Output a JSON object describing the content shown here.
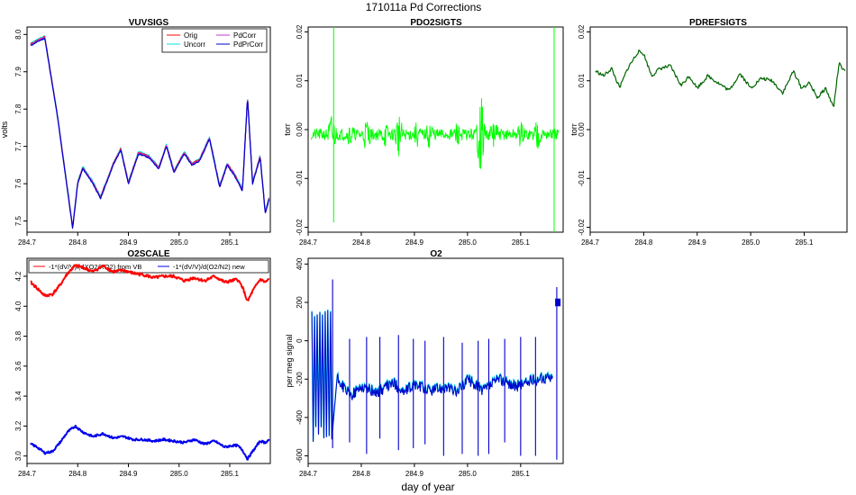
{
  "figure": {
    "title": "171011a   Pd Corrections",
    "xlabel": "day of year"
  },
  "colors": {
    "orig": "#ff0000",
    "uncorr": "#00e5ee",
    "pdcorr": "#cc33cc",
    "pdprcorr": "#0000cc",
    "pdo2": "#00ff00",
    "pdref": "#006400",
    "o2scale_vb": "#ff0000",
    "o2scale_new": "#0000ee"
  },
  "chart_data": [
    {
      "id": "vuvsigs",
      "type": "line",
      "title": "VUVSIGS",
      "ylabel": "volts",
      "xlim": [
        284.7,
        285.18
      ],
      "ylim": [
        7.47,
        8.02
      ],
      "xticks": [
        "284.7",
        "284.8",
        "284.9",
        "285.0",
        "285.1"
      ],
      "yticks": [
        "7.5",
        "7.6",
        "7.7",
        "7.8",
        "7.9",
        "8.0"
      ],
      "legend": {
        "position": "top-right",
        "entries": [
          "Orig",
          "Uncorr",
          "PdCorr",
          "PdPrCorr"
        ]
      },
      "x": [
        284.707,
        284.72,
        284.735,
        284.76,
        284.79,
        284.8,
        284.81,
        284.83,
        284.845,
        284.87,
        284.885,
        284.9,
        284.92,
        284.94,
        284.96,
        284.975,
        284.99,
        285.01,
        285.025,
        285.04,
        285.06,
        285.08,
        285.095,
        285.11,
        285.125,
        285.135,
        285.145,
        285.16,
        285.17,
        285.178
      ],
      "series": [
        {
          "name": "PdPrCorr",
          "values": [
            7.97,
            7.98,
            7.99,
            7.78,
            7.48,
            7.6,
            7.64,
            7.6,
            7.56,
            7.65,
            7.69,
            7.6,
            7.68,
            7.67,
            7.64,
            7.7,
            7.63,
            7.68,
            7.65,
            7.66,
            7.72,
            7.59,
            7.65,
            7.62,
            7.58,
            7.83,
            7.6,
            7.67,
            7.52,
            7.56
          ]
        }
      ]
    },
    {
      "id": "pdo2sigts",
      "type": "line",
      "title": "PDO2SIGTS",
      "ylabel": "torr",
      "xlim": [
        284.7,
        285.18
      ],
      "ylim": [
        -0.021,
        0.021
      ],
      "xticks": [
        "284.7",
        "284.8",
        "284.9",
        "285.0",
        "285.1"
      ],
      "yticks": [
        "-0.02",
        "-0.01",
        "0.00",
        "0.01",
        "0.02"
      ],
      "baseline": -0.001,
      "bursts": [
        {
          "x": 284.745,
          "amp": 0.005
        },
        {
          "x": 284.78,
          "amp": 0.003
        },
        {
          "x": 284.81,
          "amp": 0.004
        },
        {
          "x": 284.845,
          "amp": 0.003
        },
        {
          "x": 284.87,
          "amp": 0.005
        },
        {
          "x": 284.905,
          "amp": 0.003
        },
        {
          "x": 284.93,
          "amp": 0.004
        },
        {
          "x": 284.98,
          "amp": 0.003
        },
        {
          "x": 285.025,
          "amp": 0.009
        },
        {
          "x": 285.05,
          "amp": 0.004
        },
        {
          "x": 285.1,
          "amp": 0.003
        },
        {
          "x": 285.13,
          "amp": 0.004
        }
      ],
      "spikes": [
        {
          "x": 284.748,
          "min": -0.019,
          "max": 0.021
        },
        {
          "x": 285.163,
          "min": -0.021,
          "max": 0.021
        }
      ]
    },
    {
      "id": "pdrefsigts",
      "type": "line",
      "title": "PDREFSIGTS",
      "ylabel": "torr",
      "xlim": [
        284.7,
        285.18
      ],
      "ylim": [
        -0.021,
        0.021
      ],
      "xticks": [
        "284.7",
        "284.8",
        "284.9",
        "285.0",
        "285.1"
      ],
      "yticks": [
        "-0.02",
        "-0.01",
        "0.00",
        "0.01",
        "0.02"
      ],
      "x": [
        284.71,
        284.725,
        284.74,
        284.755,
        284.77,
        284.79,
        284.8,
        284.815,
        284.83,
        284.85,
        284.87,
        284.885,
        284.9,
        284.92,
        284.94,
        284.96,
        284.98,
        285.0,
        285.02,
        285.04,
        285.06,
        285.08,
        285.095,
        285.11,
        285.125,
        285.14,
        285.155,
        285.165,
        285.178
      ],
      "values": [
        0.012,
        0.011,
        0.0125,
        0.0085,
        0.0125,
        0.016,
        0.0155,
        0.011,
        0.0125,
        0.013,
        0.009,
        0.011,
        0.0085,
        0.011,
        0.0095,
        0.008,
        0.0115,
        0.0085,
        0.0105,
        0.01,
        0.0075,
        0.012,
        0.0085,
        0.0095,
        0.0065,
        0.0085,
        0.0045,
        0.0135,
        0.0115
      ]
    },
    {
      "id": "o2scale",
      "type": "line",
      "title": "O2SCALE",
      "ylabel": "",
      "xlim": [
        284.7,
        285.18
      ],
      "ylim": [
        2.95,
        4.32
      ],
      "xticks": [
        "284.7",
        "284.8",
        "284.9",
        "285.0",
        "285.1"
      ],
      "yticks": [
        "3.0",
        "3.2",
        "3.4",
        "3.6",
        "3.8",
        "4.0",
        "4.2"
      ],
      "legend": {
        "position": "top",
        "entries": [
          "-1*(dV/V)/(dXO2/XO2) from VB",
          "-1*(dV/V)/d(O2/N2) new"
        ]
      },
      "x": [
        284.707,
        284.72,
        284.735,
        284.75,
        284.765,
        284.78,
        284.795,
        284.81,
        284.83,
        284.85,
        284.87,
        284.89,
        284.91,
        284.93,
        284.95,
        284.97,
        284.99,
        285.01,
        285.03,
        285.05,
        285.07,
        285.09,
        285.105,
        285.115,
        285.125,
        285.135,
        285.145,
        285.16,
        285.17,
        285.178
      ],
      "series": [
        {
          "name": "-1*(dV/V)/(dXO2/XO2) from VB",
          "values": [
            4.16,
            4.12,
            4.07,
            4.08,
            4.14,
            4.22,
            4.27,
            4.26,
            4.23,
            4.27,
            4.23,
            4.24,
            4.22,
            4.21,
            4.19,
            4.2,
            4.2,
            4.17,
            4.19,
            4.17,
            4.2,
            4.16,
            4.17,
            4.18,
            4.13,
            4.03,
            4.1,
            4.18,
            4.16,
            4.18
          ]
        },
        {
          "name": "-1*(dV/V)/d(O2/N2) new",
          "values": [
            3.08,
            3.06,
            3.02,
            3.03,
            3.09,
            3.16,
            3.2,
            3.16,
            3.13,
            3.15,
            3.12,
            3.13,
            3.11,
            3.11,
            3.1,
            3.11,
            3.1,
            3.09,
            3.11,
            3.08,
            3.1,
            3.06,
            3.07,
            3.07,
            3.04,
            2.98,
            3.03,
            3.1,
            3.09,
            3.11
          ]
        }
      ]
    },
    {
      "id": "o2",
      "type": "line",
      "title": "O2",
      "ylabel": "per meg signal",
      "xlim": [
        284.7,
        285.18
      ],
      "ylim": [
        -640,
        430
      ],
      "xticks": [
        "284.7",
        "284.8",
        "284.9",
        "285.0",
        "285.1"
      ],
      "yticks": [
        "-600",
        "-400",
        "-200",
        "0",
        "200",
        "400"
      ],
      "baseline_x": [
        284.755,
        284.78,
        284.8,
        284.83,
        284.86,
        284.88,
        284.9,
        284.93,
        284.96,
        284.98,
        285.0,
        285.03,
        285.06,
        285.09,
        285.12,
        285.15,
        285.16
      ],
      "baseline_y": [
        -200,
        -290,
        -240,
        -270,
        -220,
        -270,
        -230,
        -260,
        -240,
        -270,
        -200,
        -260,
        -200,
        -240,
        -210,
        -190,
        -200
      ],
      "early_oscillation": {
        "x_start": 284.707,
        "x_end": 284.745,
        "min": -570,
        "max": 180
      },
      "spikes": [
        {
          "x": 284.746,
          "min": -560,
          "max": 320
        },
        {
          "x": 284.778,
          "min": -530,
          "max": 10
        },
        {
          "x": 284.81,
          "min": -590,
          "max": 20
        },
        {
          "x": 284.835,
          "min": -510,
          "max": 20
        },
        {
          "x": 284.87,
          "min": -570,
          "max": 30
        },
        {
          "x": 284.898,
          "min": -560,
          "max": 10
        },
        {
          "x": 284.92,
          "min": -540,
          "max": 0
        },
        {
          "x": 284.955,
          "min": -600,
          "max": 20
        },
        {
          "x": 284.99,
          "min": -590,
          "max": -10
        },
        {
          "x": 285.02,
          "min": -600,
          "max": 0
        },
        {
          "x": 285.04,
          "min": -590,
          "max": 10
        },
        {
          "x": 285.07,
          "min": -530,
          "max": 10
        },
        {
          "x": 285.1,
          "min": -600,
          "max": 20
        },
        {
          "x": 285.128,
          "min": -600,
          "max": 20
        },
        {
          "x": 285.168,
          "min": -620,
          "max": 280
        }
      ]
    }
  ]
}
